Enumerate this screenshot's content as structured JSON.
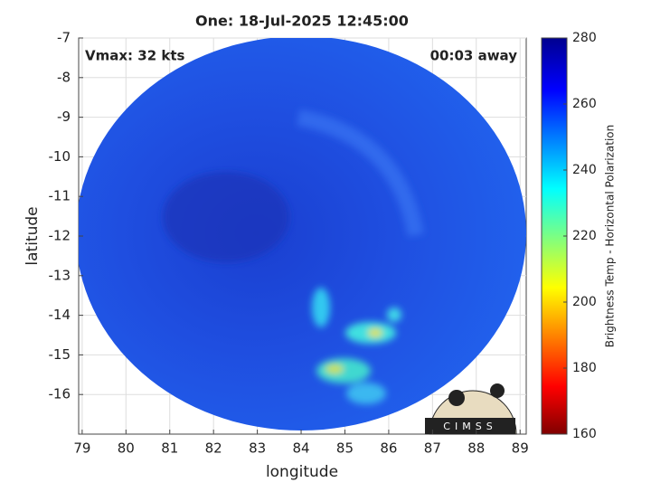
{
  "chart_data": {
    "type": "image",
    "title": "One: 18-Jul-2025 12:45:00",
    "xlabel": "longitude",
    "ylabel": "latitude",
    "annotations": [
      "Vmax: 32 kts",
      "00:03 away"
    ],
    "logo": "CIMSS",
    "xlim": [
      78.92,
      89.14
    ],
    "xticks": [
      79,
      80,
      81,
      82,
      83,
      84,
      85,
      86,
      87,
      88,
      89
    ],
    "ylim": [
      -17,
      -7
    ],
    "yticks": [
      -16,
      -15,
      -14,
      -13,
      -12,
      -11,
      -10,
      -9,
      -8,
      -7
    ],
    "grid": true,
    "colorbar": {
      "label": "Brightness Temp - Horizontal Polarization",
      "lim": [
        160,
        280
      ],
      "ticks": [
        160,
        180,
        200,
        220,
        240,
        260,
        280
      ]
    }
  }
}
